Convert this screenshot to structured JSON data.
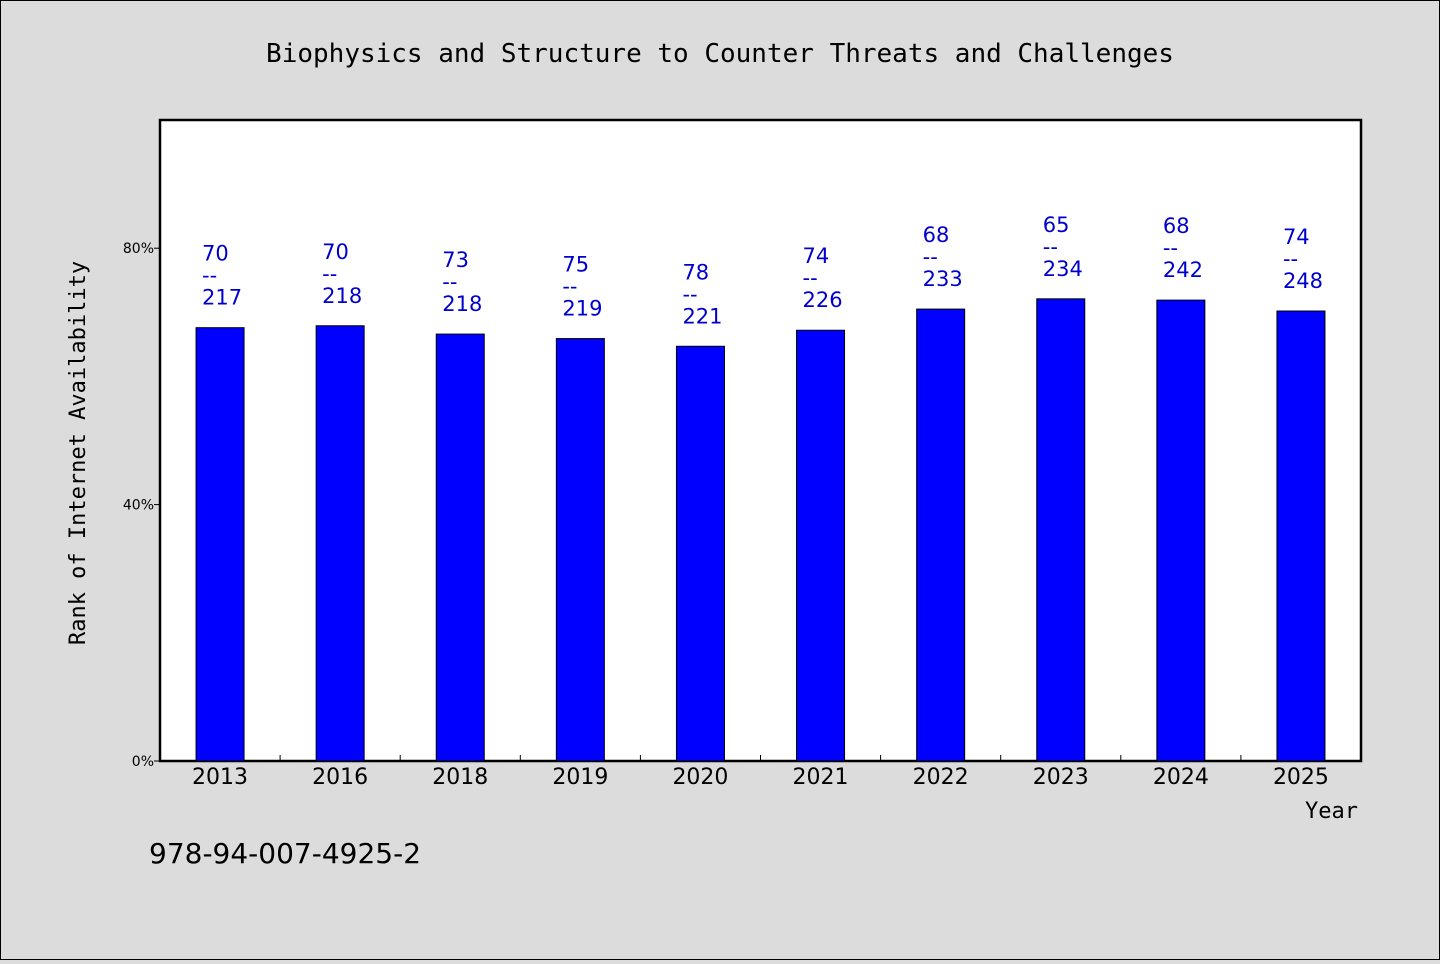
{
  "chart_data": {
    "type": "bar",
    "title": "Biophysics and Structure to Counter Threats and Challenges",
    "ylabel": "Rank of Internet Availability",
    "xlabel": "Year",
    "ylim": [
      0,
      100
    ],
    "yticks": [
      {
        "value": 0,
        "label": "0%"
      },
      {
        "value": 40,
        "label": "40%"
      },
      {
        "value": 80,
        "label": "80%"
      }
    ],
    "categories": [
      "2013",
      "2016",
      "2018",
      "2019",
      "2020",
      "2021",
      "2022",
      "2023",
      "2024",
      "2025"
    ],
    "values": [
      67.6,
      67.9,
      66.6,
      65.9,
      64.7,
      67.2,
      70.5,
      72.1,
      71.9,
      70.2
    ],
    "data_labels": [
      {
        "top": "70",
        "sep": "--",
        "bottom": "217"
      },
      {
        "top": "70",
        "sep": "--",
        "bottom": "218"
      },
      {
        "top": "73",
        "sep": "--",
        "bottom": "218"
      },
      {
        "top": "75",
        "sep": "--",
        "bottom": "219"
      },
      {
        "top": "78",
        "sep": "--",
        "bottom": "221"
      },
      {
        "top": "74",
        "sep": "--",
        "bottom": "226"
      },
      {
        "top": "68",
        "sep": "--",
        "bottom": "233"
      },
      {
        "top": "65",
        "sep": "--",
        "bottom": "234"
      },
      {
        "top": "68",
        "sep": "--",
        "bottom": "242"
      },
      {
        "top": "74",
        "sep": "--",
        "bottom": "248"
      }
    ],
    "grid": false,
    "bar_color": "#0000ff",
    "label_color": "#0000cc"
  },
  "footer": {
    "isbn": "978-94-007-4925-2"
  }
}
